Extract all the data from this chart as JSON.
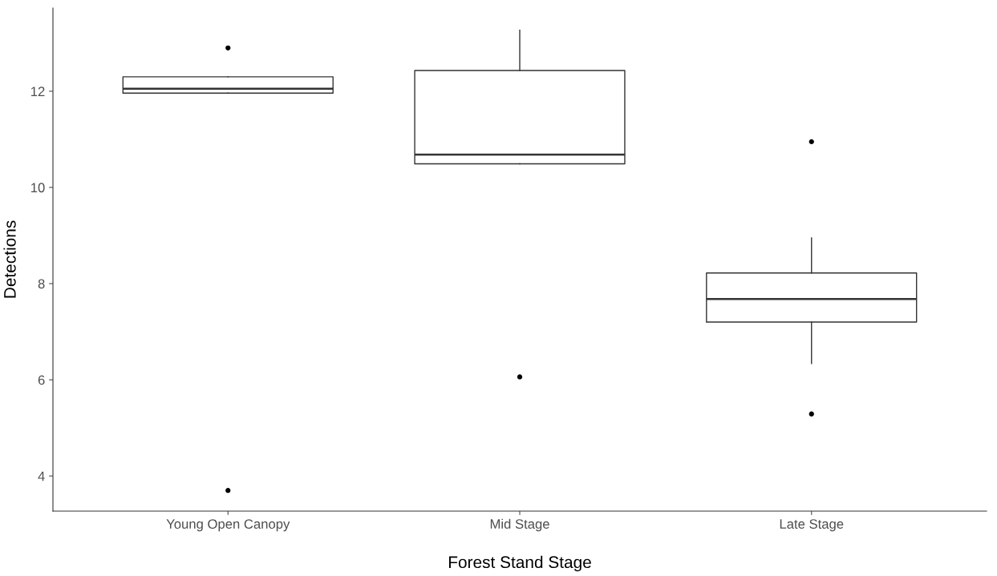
{
  "chart_data": {
    "type": "box",
    "xlabel": "Forest Stand Stage",
    "ylabel": "Detections",
    "categories": [
      "Young Open Canopy",
      "Mid Stage",
      "Late Stage"
    ],
    "boxes": [
      {
        "low": 11.96,
        "q1": 11.96,
        "median": 12.05,
        "q3": 12.3,
        "high": 12.3,
        "outliers": [
          12.9,
          3.7
        ]
      },
      {
        "low": 10.49,
        "q1": 10.49,
        "median": 10.68,
        "q3": 12.43,
        "high": 13.27,
        "outliers": [
          6.06
        ]
      },
      {
        "low": 6.34,
        "q1": 7.2,
        "median": 7.68,
        "q3": 8.22,
        "high": 8.95,
        "outliers": [
          10.95,
          5.29
        ]
      }
    ],
    "ylim": [
      3.27,
      13.73
    ],
    "yticks": [
      4,
      6,
      8,
      10,
      12
    ],
    "grid": false
  }
}
